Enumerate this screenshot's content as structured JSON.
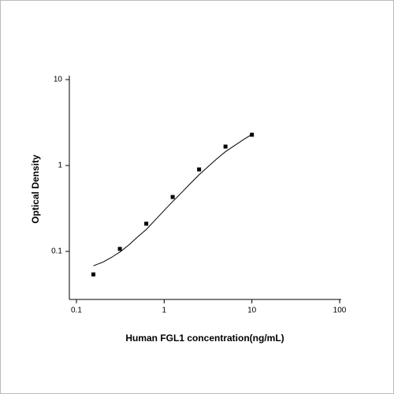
{
  "chart_data": {
    "type": "scatter",
    "xlabel": "Human FGL1 concentration(ng/mL)",
    "ylabel": "Optical Density",
    "xscale": "log",
    "yscale": "log",
    "xlim": [
      0.083,
      100
    ],
    "ylim": [
      0.0276,
      10
    ],
    "xticks": [
      0.1,
      1,
      10,
      100
    ],
    "yticks": [
      0.1,
      1,
      10
    ],
    "color": "#000000",
    "x": [
      0.156,
      0.3125,
      0.625,
      1.25,
      2.5,
      5,
      10
    ],
    "values": [
      0.054,
      0.107,
      0.21,
      0.43,
      0.9,
      1.66,
      2.28
    ],
    "fit": {
      "x": [
        0.156,
        0.2,
        0.25,
        0.32,
        0.4,
        0.5,
        0.625,
        0.8,
        1,
        1.25,
        1.6,
        2,
        2.5,
        3.2,
        4,
        5,
        6.3,
        8,
        10
      ],
      "values": [
        0.068,
        0.075,
        0.085,
        0.1,
        0.12,
        0.148,
        0.18,
        0.235,
        0.3,
        0.38,
        0.49,
        0.62,
        0.78,
        0.98,
        1.2,
        1.45,
        1.7,
        2.0,
        2.3
      ]
    }
  }
}
